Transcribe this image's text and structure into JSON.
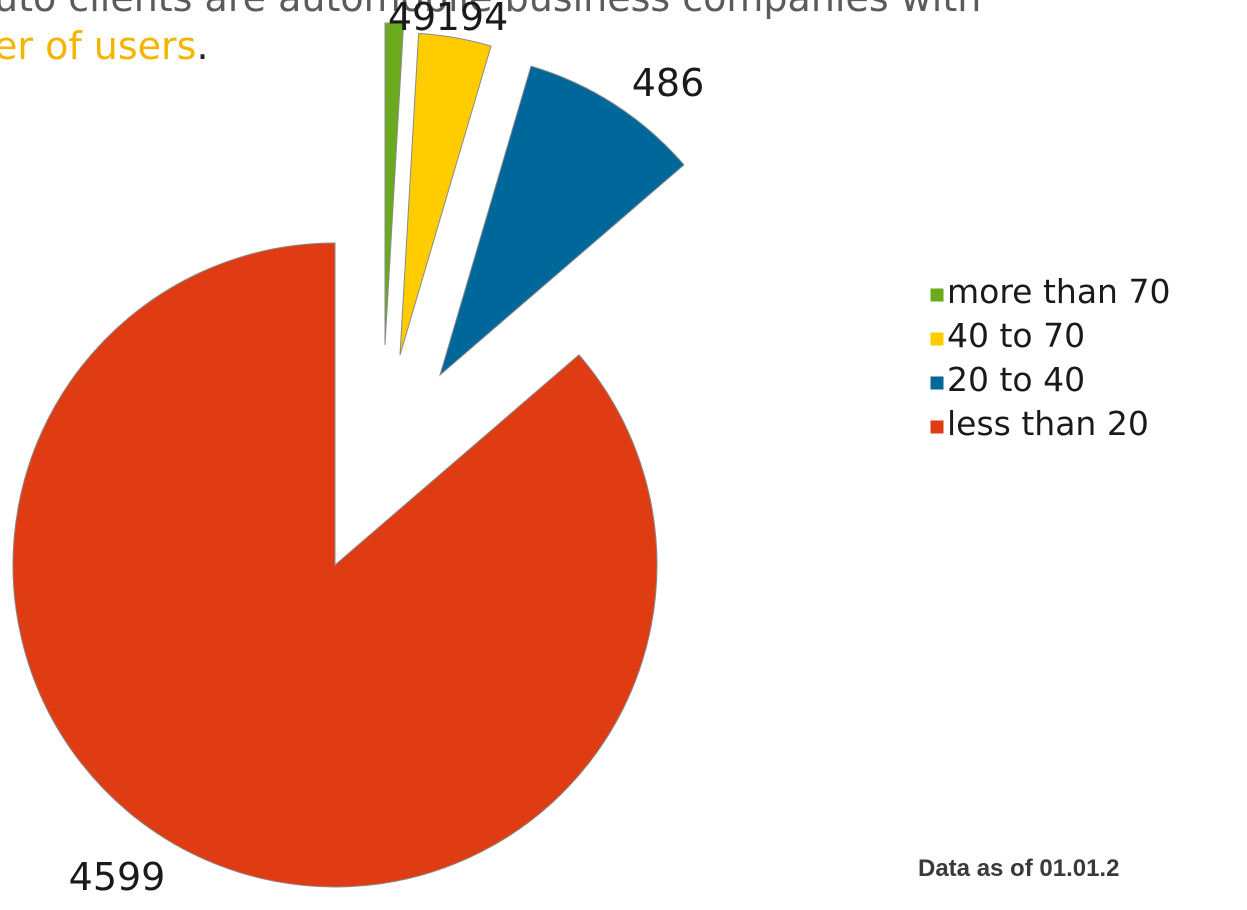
{
  "intro": {
    "line1": "uto clients are automobile business companies with",
    "line2_highlight": "er of users",
    "line2_end": "."
  },
  "chart_data": {
    "type": "pie",
    "title": "",
    "slices": [
      {
        "label": "more than 70",
        "data_label": "49",
        "value": 49,
        "color": "#6aaa1e"
      },
      {
        "label": "40 to 70",
        "data_label": "194",
        "value": 194,
        "color": "#ffcc00"
      },
      {
        "label": "20 to 40",
        "data_label": "486",
        "value": 486,
        "color": "#00679b"
      },
      {
        "label": "less than 20",
        "data_label": "4599",
        "value": 4599,
        "color": "#e03c14"
      }
    ],
    "exploded": true,
    "legend_position": "right"
  },
  "footnote": "Data as of 01.01.2"
}
